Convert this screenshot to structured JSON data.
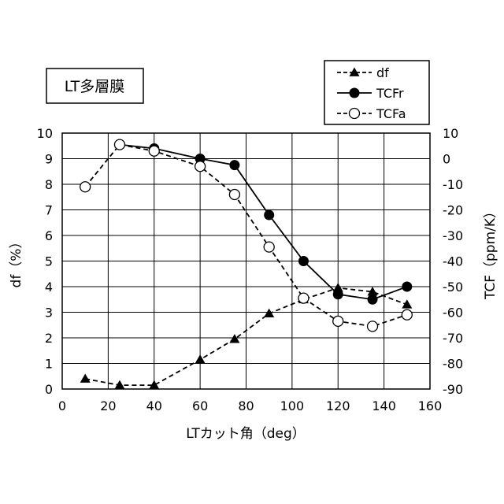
{
  "chart_data": {
    "type": "line",
    "title": "LT多層膜",
    "xlabel": "LTカット角（deg）",
    "ylabel_left": "df（%）",
    "ylabel_right": "TCF（ppm/K）",
    "xlim": [
      0,
      160
    ],
    "ylim_left": [
      0,
      10
    ],
    "ylim_right": [
      -90,
      10
    ],
    "x_ticks": [
      "0",
      "20",
      "40",
      "60",
      "80",
      "100",
      "120",
      "140",
      "160"
    ],
    "y_left_ticks": [
      "0",
      "1",
      "2",
      "3",
      "4",
      "5",
      "6",
      "7",
      "8",
      "9",
      "10"
    ],
    "y_right_ticks": [
      "-90",
      "-80",
      "-70",
      "-60",
      "-50",
      "-40",
      "-30",
      "-20",
      "-10",
      "0",
      "10"
    ],
    "grid": true,
    "legend_position": "top-right",
    "series": [
      {
        "name": "df",
        "axis": "left",
        "marker": "triangle",
        "line": "dashed",
        "x": [
          10,
          25,
          40,
          60,
          75,
          90,
          105,
          120,
          135,
          150
        ],
        "y": [
          0.4,
          0.15,
          0.15,
          1.15,
          1.95,
          2.95,
          3.5,
          3.95,
          3.8,
          3.3
        ]
      },
      {
        "name": "TCFr",
        "axis": "right",
        "marker": "filled-circle",
        "line": "solid",
        "x": [
          25,
          40,
          60,
          75,
          90,
          105,
          120,
          135,
          150
        ],
        "y": [
          5.5,
          4,
          0,
          -2.5,
          -22,
          -40,
          -53,
          -55,
          -50
        ]
      },
      {
        "name": "TCFa",
        "axis": "right",
        "marker": "open-circle",
        "line": "dashed",
        "x": [
          10,
          25,
          40,
          60,
          75,
          90,
          105,
          120,
          135,
          150
        ],
        "y": [
          -11,
          5.5,
          3,
          -3,
          -14,
          -34.5,
          -54.5,
          -63.5,
          -65.5,
          -61
        ]
      }
    ]
  }
}
